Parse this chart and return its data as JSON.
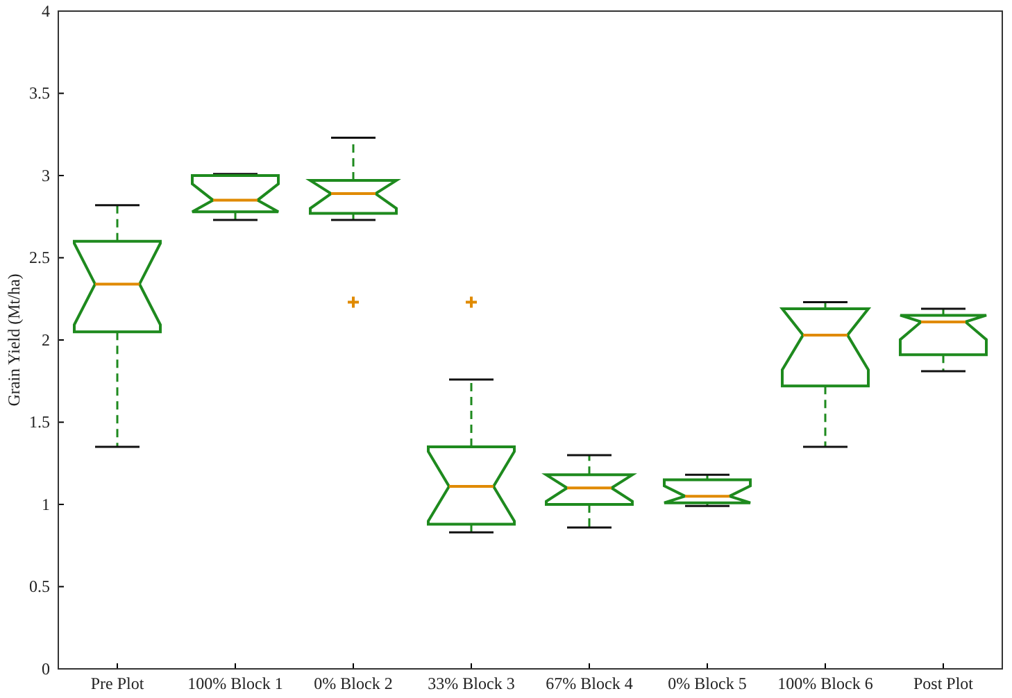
{
  "chart_data": {
    "type": "box",
    "ylabel": "Grain Yield (Mt/ha)",
    "categories": [
      "Pre Plot",
      "100% Block 1",
      "0% Block 2",
      "33% Block 3",
      "67% Block 4",
      "0% Block 5",
      "100% Block 6",
      "Post Plot"
    ],
    "color": "#1e8a1e",
    "boxes": [
      {
        "low": 1.35,
        "q1": 2.05,
        "median": 2.34,
        "q3": 2.6,
        "high": 2.82
      },
      {
        "low": 2.73,
        "q1": 2.78,
        "median": 2.85,
        "q3": 3.0,
        "high": 3.01
      },
      {
        "low": 2.73,
        "q1": 2.77,
        "median": 2.89,
        "q3": 2.97,
        "high": 3.23,
        "outliers": [
          2.23
        ]
      },
      {
        "low": 0.83,
        "q1": 0.88,
        "median": 1.11,
        "q3": 1.35,
        "high": 1.76,
        "outliers": [
          2.23
        ]
      },
      {
        "low": 0.86,
        "q1": 1.0,
        "median": 1.1,
        "q3": 1.18,
        "high": 1.3
      },
      {
        "low": 0.99,
        "q1": 1.01,
        "median": 1.05,
        "q3": 1.15,
        "high": 1.18
      },
      {
        "low": 1.35,
        "q1": 1.72,
        "median": 2.03,
        "q3": 2.19,
        "high": 2.23
      },
      {
        "low": 1.81,
        "q1": 1.91,
        "median": 2.11,
        "q3": 2.15,
        "high": 2.19
      }
    ],
    "ylim": [
      0,
      4
    ],
    "yticks": [
      0,
      0.5,
      1,
      1.5,
      2,
      2.5,
      3,
      3.5,
      4
    ],
    "grid": false
  }
}
